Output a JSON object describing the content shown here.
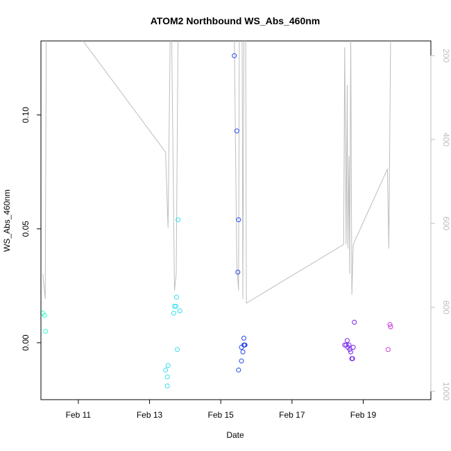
{
  "chart_data": {
    "type": "scatter",
    "title": "ATOM2 Northbound WS_Abs_460nm",
    "xlabel": "Date",
    "ylabel": "WS_Abs_460nm",
    "x_unit": "days (February)",
    "xlim": [
      9.95,
      20.9
    ],
    "ylim": [
      -0.025,
      0.1325
    ],
    "x_ticks": [
      {
        "value": 11,
        "label": "Feb 11"
      },
      {
        "value": 13,
        "label": "Feb 13"
      },
      {
        "value": 15,
        "label": "Feb 15"
      },
      {
        "value": 17,
        "label": "Feb 17"
      },
      {
        "value": 19,
        "label": "Feb 19"
      }
    ],
    "y_ticks": [
      {
        "value": 0.0,
        "label": "0.00"
      },
      {
        "value": 0.05,
        "label": "0.05"
      },
      {
        "value": 0.1,
        "label": "0.10"
      }
    ],
    "grid": false,
    "series": [
      {
        "color": "#33ffcc",
        "points": [
          [
            10.0,
            0.013
          ],
          [
            10.05,
            0.012
          ],
          [
            10.08,
            0.005
          ]
        ]
      },
      {
        "color": "#33ddee",
        "points": [
          [
            13.45,
            -0.012
          ],
          [
            13.5,
            -0.015
          ],
          [
            13.52,
            -0.01
          ],
          [
            13.5,
            -0.019
          ],
          [
            13.68,
            0.013
          ],
          [
            13.7,
            0.016
          ],
          [
            13.74,
            0.016
          ],
          [
            13.76,
            0.02
          ],
          [
            13.78,
            -0.003
          ],
          [
            13.85,
            0.014
          ],
          [
            13.8,
            0.054
          ]
        ]
      },
      {
        "color": "#2244ee",
        "points": [
          [
            15.38,
            0.126
          ],
          [
            15.45,
            0.093
          ],
          [
            15.5,
            0.054
          ],
          [
            15.48,
            0.031
          ],
          [
            15.5,
            -0.012
          ],
          [
            15.58,
            -0.008
          ],
          [
            15.58,
            -0.002
          ],
          [
            15.62,
            -0.004
          ],
          [
            15.65,
            0.002
          ],
          [
            15.65,
            -0.001
          ],
          [
            15.68,
            -0.001
          ],
          [
            15.66,
            -0.001
          ]
        ]
      },
      {
        "color": "#7722ee",
        "points": [
          [
            18.48,
            -0.001
          ],
          [
            18.52,
            -0.001
          ],
          [
            18.55,
            0.001
          ],
          [
            18.57,
            -0.002
          ],
          [
            18.6,
            -0.001
          ],
          [
            18.62,
            -0.003
          ],
          [
            18.65,
            -0.004
          ],
          [
            18.68,
            -0.007
          ],
          [
            18.7,
            -0.007
          ],
          [
            18.72,
            -0.002
          ],
          [
            18.75,
            0.009
          ]
        ]
      },
      {
        "color": "#cc33dd",
        "points": [
          [
            19.7,
            -0.003
          ],
          [
            19.75,
            0.008
          ],
          [
            19.77,
            0.007
          ]
        ]
      }
    ],
    "secondary_axis": {
      "side": "right",
      "reversed": true,
      "ylim": [
        165,
        1020
      ],
      "ticks": [
        200,
        400,
        600,
        800,
        1000
      ],
      "line_color": "#bdbdbd",
      "line": [
        [
          10.0,
          720
        ],
        [
          10.07,
          780
        ],
        [
          10.1,
          150
        ],
        [
          10.6,
          150
        ],
        [
          11.0,
          150
        ],
        [
          13.45,
          430
        ],
        [
          13.52,
          610
        ],
        [
          13.58,
          150
        ],
        [
          13.62,
          150
        ],
        [
          13.7,
          760
        ],
        [
          13.75,
          720
        ],
        [
          13.8,
          150
        ],
        [
          13.9,
          150
        ],
        [
          15.38,
          150
        ],
        [
          15.45,
          700
        ],
        [
          15.5,
          760
        ],
        [
          15.52,
          150
        ],
        [
          15.6,
          150
        ],
        [
          15.62,
          780
        ],
        [
          15.65,
          150
        ],
        [
          15.7,
          150
        ],
        [
          15.72,
          790
        ],
        [
          18.45,
          650
        ],
        [
          18.48,
          180
        ],
        [
          18.52,
          650
        ],
        [
          18.55,
          270
        ],
        [
          18.57,
          660
        ],
        [
          18.6,
          440
        ],
        [
          18.62,
          720
        ],
        [
          18.65,
          150
        ],
        [
          18.68,
          770
        ],
        [
          18.72,
          650
        ],
        [
          19.68,
          470
        ],
        [
          19.72,
          660
        ],
        [
          19.77,
          150
        ]
      ]
    }
  }
}
